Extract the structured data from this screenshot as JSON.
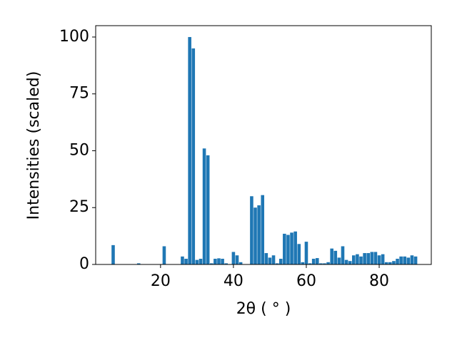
{
  "chart_data": {
    "type": "bar",
    "xlabel": "2θ ( ° )",
    "ylabel": "Intensities (scaled)",
    "x": [
      7,
      14,
      21,
      26,
      27,
      28,
      29,
      30,
      31,
      32,
      33,
      34,
      35,
      36,
      37,
      38,
      39,
      40,
      41,
      42,
      43,
      44,
      45,
      46,
      47,
      48,
      49,
      50,
      51,
      52,
      53,
      54,
      55,
      56,
      57,
      58,
      59,
      60,
      61,
      62,
      63,
      64,
      65,
      66,
      67,
      68,
      69,
      70,
      71,
      72,
      73,
      74,
      75,
      76,
      77,
      78,
      79,
      80,
      81,
      82,
      83,
      84,
      85,
      86,
      87,
      88,
      89,
      90
    ],
    "values": [
      8.5,
      0.5,
      8,
      3.5,
      2.5,
      100,
      95,
      2,
      2.5,
      51,
      48,
      0.5,
      2.5,
      2.7,
      2.5,
      0.5,
      0,
      5.5,
      4,
      1,
      0,
      0,
      30,
      25,
      26,
      30.5,
      5,
      3,
      4,
      0.5,
      2.5,
      13.5,
      13,
      14,
      14.5,
      9,
      1,
      10,
      0.5,
      2.5,
      2.8,
      0.5,
      0.5,
      1,
      7,
      6,
      3,
      8,
      2,
      1.5,
      4,
      4.5,
      3.5,
      5,
      5,
      5.5,
      5.5,
      4,
      4.5,
      1,
      1,
      1.5,
      2.5,
      3.5,
      3.5,
      3,
      4,
      3.5
    ],
    "color": "#1f77b4",
    "xlim": [
      2.2,
      94.3
    ],
    "ylim": [
      0,
      105
    ],
    "xticks": [
      20,
      40,
      60,
      80
    ],
    "yticks": [
      0,
      25,
      50,
      75,
      100
    ]
  }
}
